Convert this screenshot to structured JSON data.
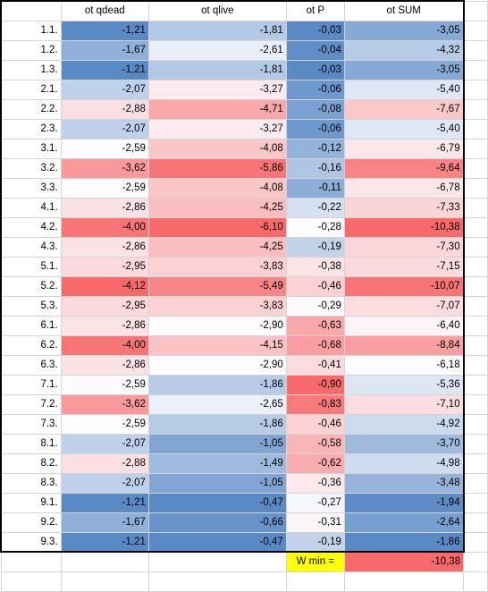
{
  "columns": [
    "ot qdead",
    "ot qlive",
    "ot P",
    "ot SUM"
  ],
  "rows": [
    {
      "label": "1.1.",
      "values": [
        "-1,21",
        "-1,81",
        "-0,03",
        "-3,05"
      ]
    },
    {
      "label": "1.2.",
      "values": [
        "-1,67",
        "-2,61",
        "-0,04",
        "-4,32"
      ]
    },
    {
      "label": "1.3.",
      "values": [
        "-1,21",
        "-1,81",
        "-0,03",
        "-3,05"
      ]
    },
    {
      "label": "2.1.",
      "values": [
        "-2,07",
        "-3,27",
        "-0,06",
        "-5,40"
      ]
    },
    {
      "label": "2.2.",
      "values": [
        "-2,88",
        "-4,71",
        "-0,08",
        "-7,67"
      ]
    },
    {
      "label": "2.3.",
      "values": [
        "-2,07",
        "-3,27",
        "-0,06",
        "-5,40"
      ]
    },
    {
      "label": "3.1.",
      "values": [
        "-2,59",
        "-4,08",
        "-0,12",
        "-6,79"
      ]
    },
    {
      "label": "3.2.",
      "values": [
        "-3,62",
        "-5,86",
        "-0,16",
        "-9,64"
      ]
    },
    {
      "label": "3.3.",
      "values": [
        "-2,59",
        "-4,08",
        "-0,11",
        "-6,78"
      ]
    },
    {
      "label": "4.1.",
      "values": [
        "-2,86",
        "-4,25",
        "-0,22",
        "-7,33"
      ]
    },
    {
      "label": "4.2.",
      "values": [
        "-4,00",
        "-6,10",
        "-0,28",
        "-10,38"
      ]
    },
    {
      "label": "4.3.",
      "values": [
        "-2,86",
        "-4,25",
        "-0,19",
        "-7,30"
      ]
    },
    {
      "label": "5.1.",
      "values": [
        "-2,95",
        "-3,83",
        "-0,38",
        "-7,15"
      ]
    },
    {
      "label": "5.2.",
      "values": [
        "-4,12",
        "-5,49",
        "-0,46",
        "-10,07"
      ]
    },
    {
      "label": "5.3.",
      "values": [
        "-2,95",
        "-3,83",
        "-0,29",
        "-7,07"
      ]
    },
    {
      "label": "6.1.",
      "values": [
        "-2,86",
        "-2,90",
        "-0,63",
        "-6,40"
      ]
    },
    {
      "label": "6.2.",
      "values": [
        "-4,00",
        "-4,15",
        "-0,68",
        "-8,84"
      ]
    },
    {
      "label": "6.3.",
      "values": [
        "-2,86",
        "-2,90",
        "-0,41",
        "-6,18"
      ]
    },
    {
      "label": "7.1.",
      "values": [
        "-2,59",
        "-1,86",
        "-0,90",
        "-5,36"
      ]
    },
    {
      "label": "7.2.",
      "values": [
        "-3,62",
        "-2,65",
        "-0,83",
        "-7,10"
      ]
    },
    {
      "label": "7.3.",
      "values": [
        "-2,59",
        "-1,86",
        "-0,46",
        "-4,92"
      ]
    },
    {
      "label": "8.1.",
      "values": [
        "-2,07",
        "-1,05",
        "-0,58",
        "-3,70"
      ]
    },
    {
      "label": "8.2.",
      "values": [
        "-2,88",
        "-1,49",
        "-0,62",
        "-4,98"
      ]
    },
    {
      "label": "8.3.",
      "values": [
        "-2,07",
        "-1,05",
        "-0,36",
        "-3,48"
      ]
    },
    {
      "label": "9.1.",
      "values": [
        "-1,21",
        "-0,47",
        "-0,27",
        "-1,94"
      ]
    },
    {
      "label": "9.2.",
      "values": [
        "-1,67",
        "-0,66",
        "-0,31",
        "-2,64"
      ]
    },
    {
      "label": "9.3.",
      "values": [
        "-1,21",
        "-0,47",
        "-0,19",
        "-1,86"
      ]
    }
  ],
  "summary": {
    "label": "W min =",
    "value": "-10,38"
  },
  "colors": {
    "scale_high": "#5a8ac6",
    "scale_mid": "#fcfcff",
    "scale_low": "#f8696b",
    "summary_label_bg": "#ffff00",
    "summary_value_bg": "#f8696b"
  }
}
